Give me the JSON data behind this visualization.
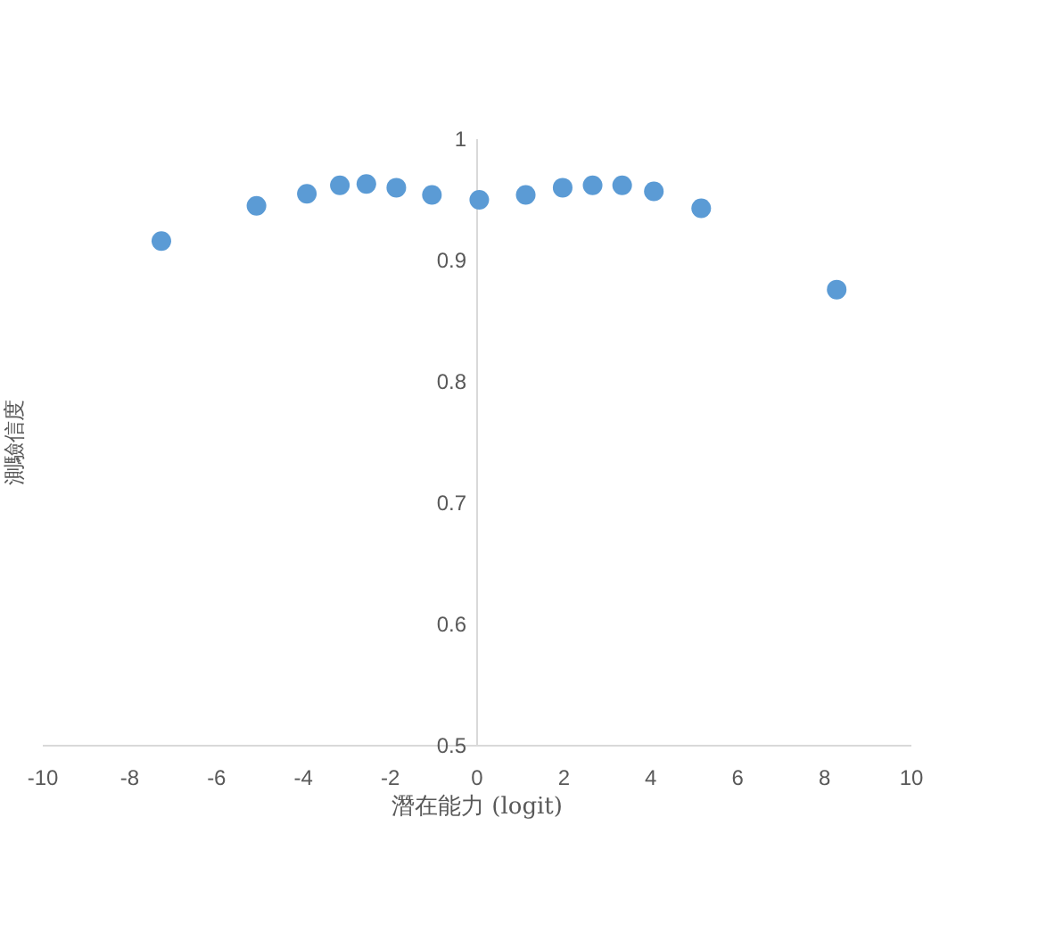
{
  "chart_data": {
    "type": "scatter",
    "xlabel": "潛在能力 (logit)",
    "ylabel": "測驗信度",
    "x": [
      -7.27,
      -5.08,
      -3.92,
      -3.16,
      -2.55,
      -1.86,
      -1.04,
      0.05,
      1.12,
      1.97,
      2.66,
      3.34,
      4.07,
      5.16,
      8.28
    ],
    "series": [
      {
        "color": "#5b9bd5",
        "values": [
          0.916,
          0.945,
          0.955,
          0.962,
          0.963,
          0.96,
          0.954,
          0.95,
          0.954,
          0.96,
          0.962,
          0.962,
          0.957,
          0.943,
          0.876
        ]
      }
    ],
    "xlim": [
      -10,
      10
    ],
    "xticks": [
      -10,
      -8,
      -6,
      -4,
      -2,
      0,
      2,
      4,
      6,
      8,
      10
    ],
    "ylim": [
      0.5,
      1
    ],
    "yticks": [
      0.5,
      0.6,
      0.7,
      0.8,
      0.9,
      1
    ],
    "grid": false,
    "marker": "circle"
  }
}
